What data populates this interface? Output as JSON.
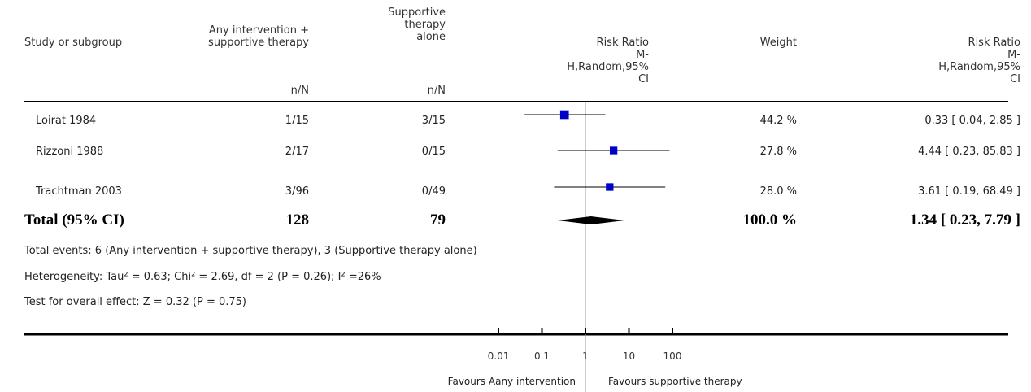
{
  "header": {
    "study_label": "Study or subgroup",
    "group1_label": "Any intervention +\nsupportive therapy",
    "group2_label": "Supportive\ntherapy\nalone",
    "rr_plot_label": "Risk Ratio\nM-\nH,Random,95%\nCI",
    "weight_label": "Weight",
    "rr_value_label": "Risk Ratio\nM-\nH,Random,95%\nCI",
    "nN1": "n/N",
    "nN2": "n/N"
  },
  "studies": [
    {
      "name": "Loirat 1984",
      "g1": "1/15",
      "g2": "3/15",
      "weight": "44.2 %",
      "ci_text": "0.33 [ 0.04, 2.85 ]"
    },
    {
      "name": "Rizzoni 1988",
      "g1": "2/17",
      "g2": "0/15",
      "weight": "27.8 %",
      "ci_text": "4.44 [ 0.23, 85.83 ]"
    },
    {
      "name": "Trachtman 2003",
      "g1": "3/96",
      "g2": "0/49",
      "weight": "28.0 %",
      "ci_text": "3.61 [ 0.19, 68.49 ]"
    }
  ],
  "total": {
    "label": "Total (95% CI)",
    "g1": "128",
    "g2": "79",
    "weight": "100.0 %",
    "ci_text": "1.34 [ 0.23, 7.79 ]"
  },
  "footer": {
    "events": "Total events: 6 (Any intervention + supportive therapy), 3 (Supportive therapy alone)",
    "heterogeneity": "Heterogeneity: Tau² = 0.63; Chi² = 2.69, df = 2 (P = 0.26); I² =26%",
    "overall": "Test for overall effect: Z = 0.32 (P = 0.75)"
  },
  "axis": {
    "favours_left": "Favours Aany intervention",
    "favours_right": "Favours supportive therapy"
  },
  "colors": {
    "marker": "#0000cc",
    "line": "#000000",
    "null_line": "#999999"
  },
  "chart_data": {
    "type": "scatter",
    "scale": "log",
    "xlim": [
      0.01,
      100
    ],
    "xticks": [
      0.01,
      0.1,
      1,
      10,
      100
    ],
    "xtick_labels": [
      "0.01",
      "0.1",
      "1",
      "10",
      "100"
    ],
    "series": [
      {
        "study": "Loirat 1984",
        "rr": 0.33,
        "lo": 0.04,
        "hi": 2.85,
        "weight": 44.2
      },
      {
        "study": "Rizzoni 1988",
        "rr": 4.44,
        "lo": 0.23,
        "hi": 85.83,
        "weight": 27.8
      },
      {
        "study": "Trachtman 2003",
        "rr": 3.61,
        "lo": 0.19,
        "hi": 68.49,
        "weight": 28.0
      }
    ],
    "pooled": {
      "rr": 1.34,
      "lo": 0.23,
      "hi": 7.79
    }
  }
}
